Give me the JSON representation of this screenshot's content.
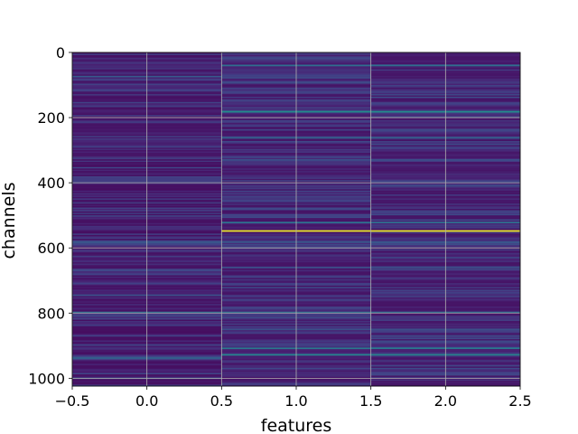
{
  "chart_data": {
    "type": "heatmap",
    "colormap": "viridis",
    "title": "",
    "xlabel": "features",
    "ylabel": "channels",
    "xlim": [
      -0.5,
      2.5
    ],
    "ylim": [
      1024,
      0
    ],
    "y_inverted": true,
    "grid": true,
    "x_ticks": [
      -0.5,
      0.0,
      0.5,
      1.0,
      1.5,
      2.0,
      2.5
    ],
    "x_tick_labels": [
      "−0.5",
      "0.0",
      "0.5",
      "1.0",
      "1.5",
      "2.0",
      "2.5"
    ],
    "y_ticks": [
      0,
      200,
      400,
      600,
      800,
      1000
    ],
    "y_tick_labels": [
      "0",
      "200",
      "400",
      "600",
      "800",
      "1000"
    ],
    "features": [
      0,
      1,
      2
    ],
    "n_channels": 1024,
    "value_scale": [
      0,
      1
    ],
    "background_level": {
      "feature_0": 0.05,
      "feature_1_2": 0.07
    },
    "highlights": [
      {
        "channel": 40,
        "features": [
          1,
          2
        ],
        "value": 0.45
      },
      {
        "channel": 74,
        "features": [
          0
        ],
        "value": 0.35
      },
      {
        "channel": 182,
        "features": [
          1,
          2
        ],
        "value": 0.6
      },
      {
        "channel": 262,
        "features": [
          1,
          2
        ],
        "value": 0.4
      },
      {
        "channel": 330,
        "features": [
          1,
          2
        ],
        "value": 0.3
      },
      {
        "channel": 522,
        "features": [
          1,
          2
        ],
        "value": 0.45
      },
      {
        "channel": 548,
        "features": [
          1,
          2
        ],
        "value": 0.98
      },
      {
        "channel": 582,
        "features": [
          0,
          1,
          2
        ],
        "value": 0.35
      },
      {
        "channel": 660,
        "features": [
          1,
          2
        ],
        "value": 0.3
      },
      {
        "channel": 745,
        "features": [
          0
        ],
        "value": 0.3
      },
      {
        "channel": 798,
        "features": [
          0,
          1,
          2
        ],
        "value": 0.45
      },
      {
        "channel": 850,
        "features": [
          1,
          2
        ],
        "value": 0.3
      },
      {
        "channel": 908,
        "features": [
          1,
          2
        ],
        "value": 0.5
      },
      {
        "channel": 928,
        "features": [
          1,
          2
        ],
        "value": 0.55
      },
      {
        "channel": 938,
        "features": [
          0
        ],
        "value": 0.4
      },
      {
        "channel": 1000,
        "features": [
          0
        ],
        "value": 0.3
      }
    ]
  }
}
